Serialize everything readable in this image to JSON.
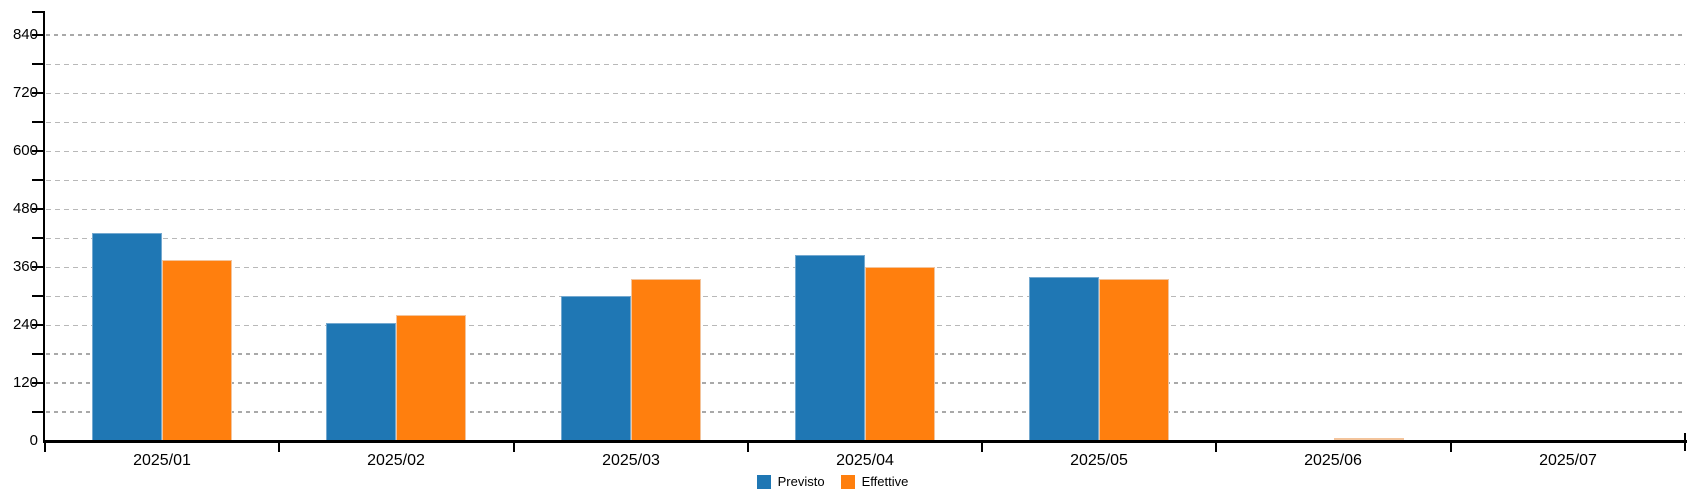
{
  "chart_data": {
    "type": "bar",
    "title": "",
    "xlabel": "",
    "ylabel": "",
    "categories": [
      "2025/01",
      "2025/02",
      "2025/03",
      "2025/04",
      "2025/05",
      "2025/06",
      "2025/07"
    ],
    "series": [
      {
        "name": "Previsto",
        "color": "#1F77B4",
        "border_color": "#74A9D0",
        "values": [
          430,
          245,
          300,
          385,
          340,
          null,
          null
        ]
      },
      {
        "name": "Effettive",
        "color": "#FF7F0E",
        "border_color": "#F3C49C",
        "values": [
          375,
          260,
          335,
          360,
          335,
          0,
          null
        ]
      }
    ],
    "ylim": [
      0,
      890
    ],
    "yticks": [
      0,
      120,
      240,
      360,
      480,
      600,
      720,
      840
    ],
    "ytick_minor_step": 60,
    "bold_gridline_values": [
      60,
      120,
      180,
      840
    ],
    "grid": "horizontal-dashed",
    "legend_position": "bottom-center",
    "colors": {
      "axis": "#000000",
      "grid_light": "#B8B8B8",
      "grid_bold": "#A9A9A9",
      "text": "#000000",
      "background": "#FFFFFF"
    }
  }
}
